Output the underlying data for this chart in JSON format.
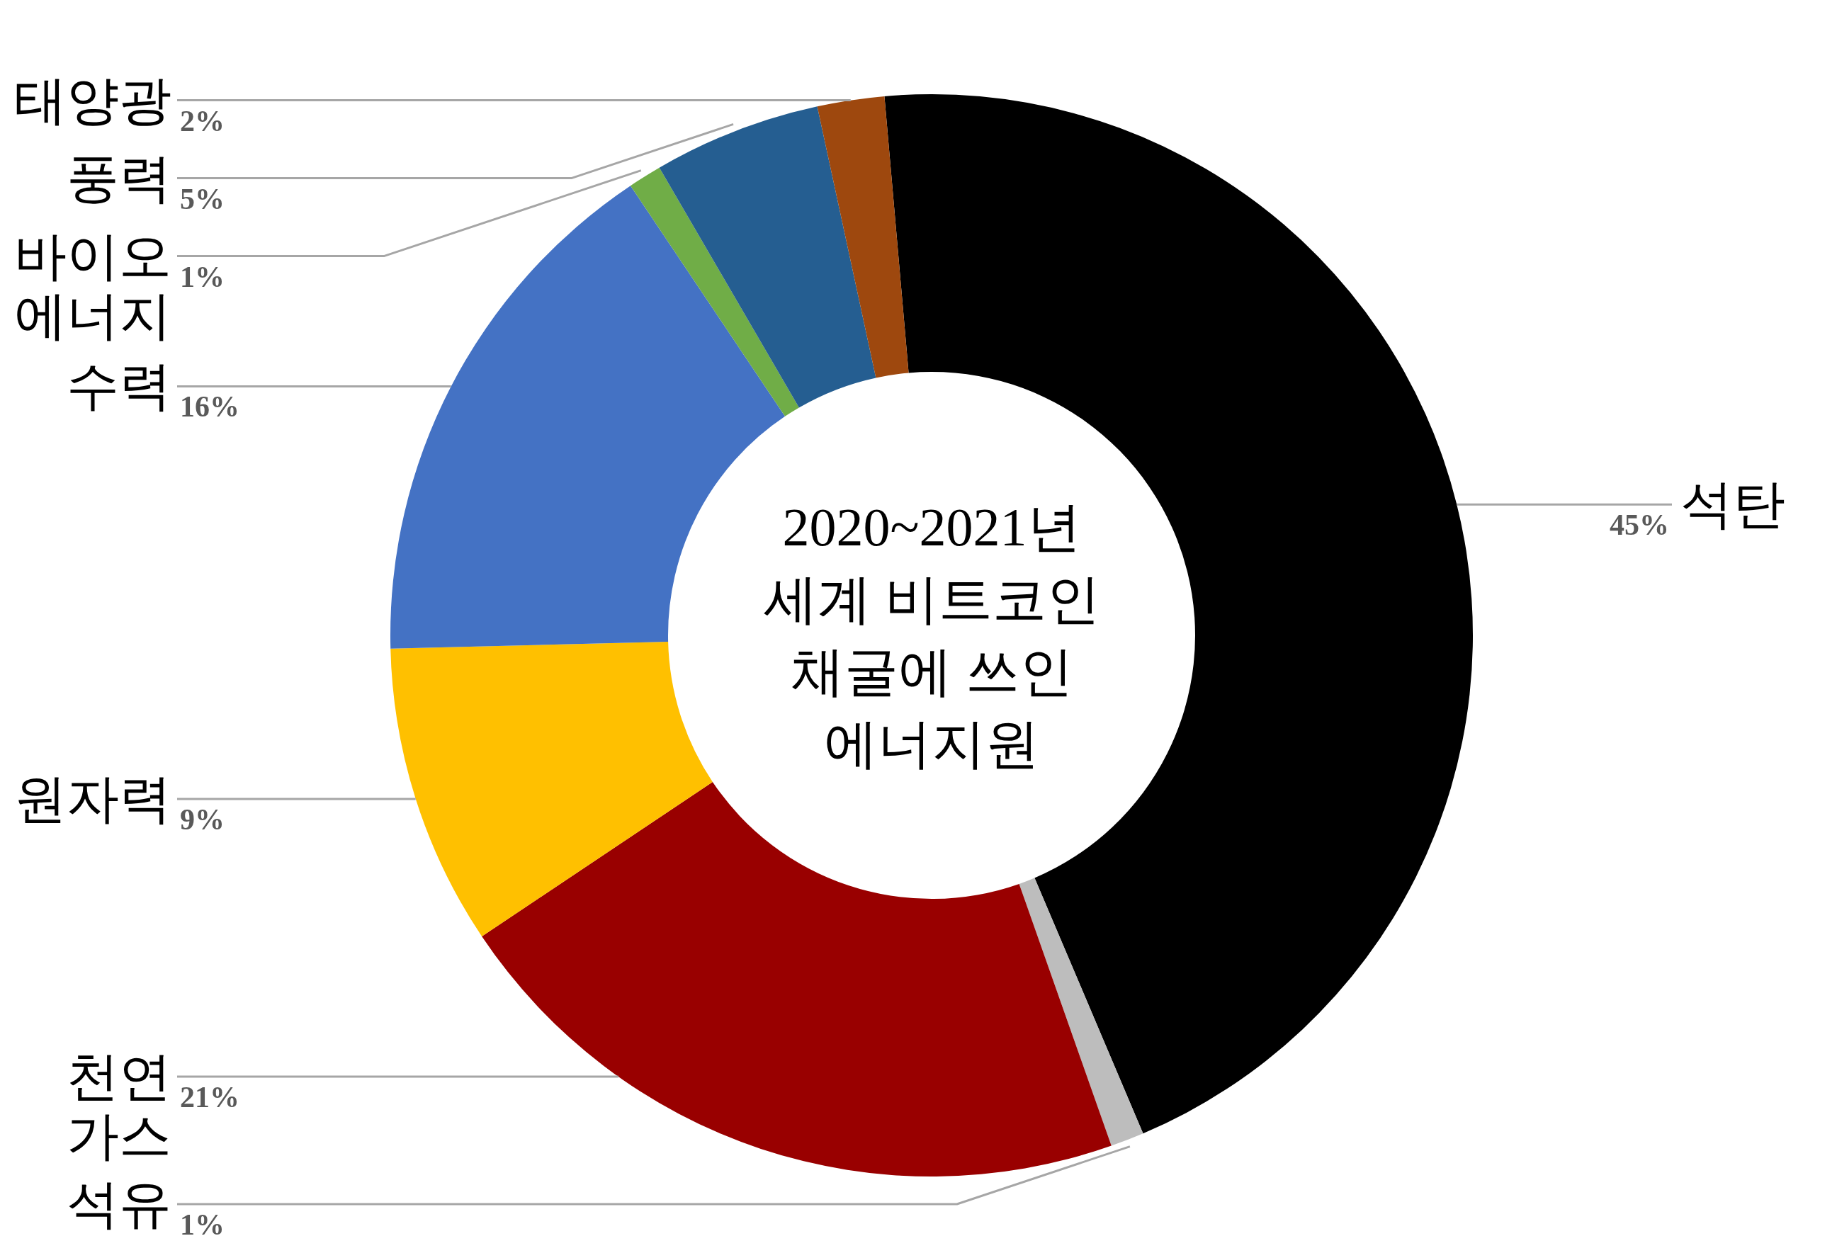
{
  "chart_data": {
    "type": "donut",
    "title": "2020~2021년 세계 비트코인 채굴에 쓰인 에너지원",
    "categories": [
      "석탄",
      "석유",
      "천연가스",
      "원자력",
      "수력",
      "바이오에너지",
      "풍력",
      "태양광"
    ],
    "values": [
      45,
      1,
      21,
      9,
      16,
      1,
      5,
      2
    ],
    "colors": [
      "#000000",
      "#bdbdbd",
      "#990000",
      "#ffc000",
      "#4472c4",
      "#70ad47",
      "#255e91",
      "#9e480e"
    ],
    "value_labels": [
      "45%",
      "1%",
      "21%",
      "9%",
      "16%",
      "1%",
      "5%",
      "2%"
    ]
  }
}
